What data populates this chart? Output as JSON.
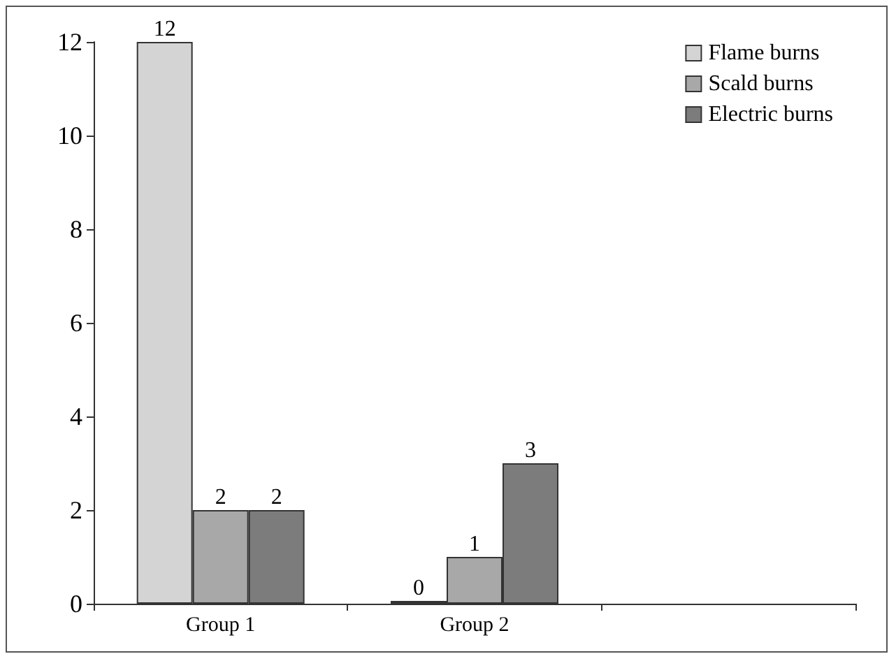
{
  "chart_data": {
    "type": "bar",
    "categories": [
      "Group 1",
      "Group 2",
      null
    ],
    "series": [
      {
        "name": "Flame burns",
        "color": "#d4d4d4",
        "values": [
          12,
          0,
          null
        ]
      },
      {
        "name": "Scald burns",
        "color": "#a8a8a8",
        "values": [
          2,
          1,
          null
        ]
      },
      {
        "name": "Electric burns",
        "color": "#7c7c7c",
        "values": [
          2,
          3,
          null
        ]
      }
    ],
    "ylim": [
      0,
      12
    ],
    "yticks": [
      0,
      2,
      4,
      6,
      8,
      10,
      12
    ],
    "grid": false,
    "legend": "top right",
    "data_labels": true
  }
}
